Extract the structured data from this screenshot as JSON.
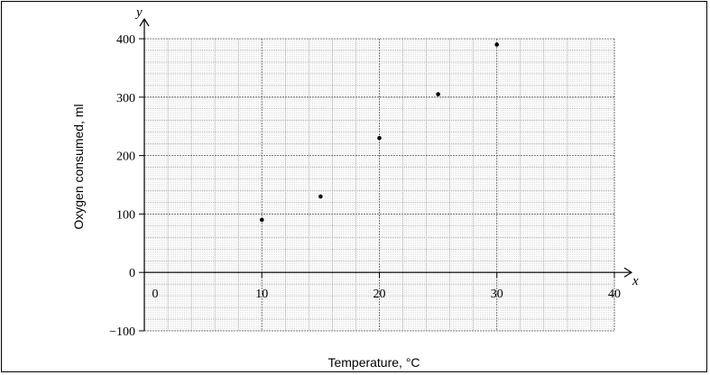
{
  "chart_data": {
    "type": "scatter",
    "xlabel": "Temperature, °C",
    "ylabel": "Oxygen consumed, ml",
    "x_axis_letter": "x",
    "y_axis_letter": "y",
    "xlim": [
      0,
      40
    ],
    "ylim": [
      -100,
      400
    ],
    "x_ticks": [
      0,
      10,
      20,
      30,
      40
    ],
    "y_ticks": [
      -100,
      0,
      100,
      200,
      300,
      400
    ],
    "x_tick_labels": [
      "0",
      "10",
      "20",
      "30",
      "40"
    ],
    "y_tick_labels": [
      "−100",
      "0",
      "100",
      "200",
      "300",
      "400"
    ],
    "grid": true,
    "grid_minor_step_x": 2,
    "grid_minor_step_y": 20,
    "points": [
      {
        "x": 10,
        "y": 90
      },
      {
        "x": 15,
        "y": 130
      },
      {
        "x": 20,
        "y": 230
      },
      {
        "x": 25,
        "y": 305
      },
      {
        "x": 30,
        "y": 390
      }
    ]
  }
}
